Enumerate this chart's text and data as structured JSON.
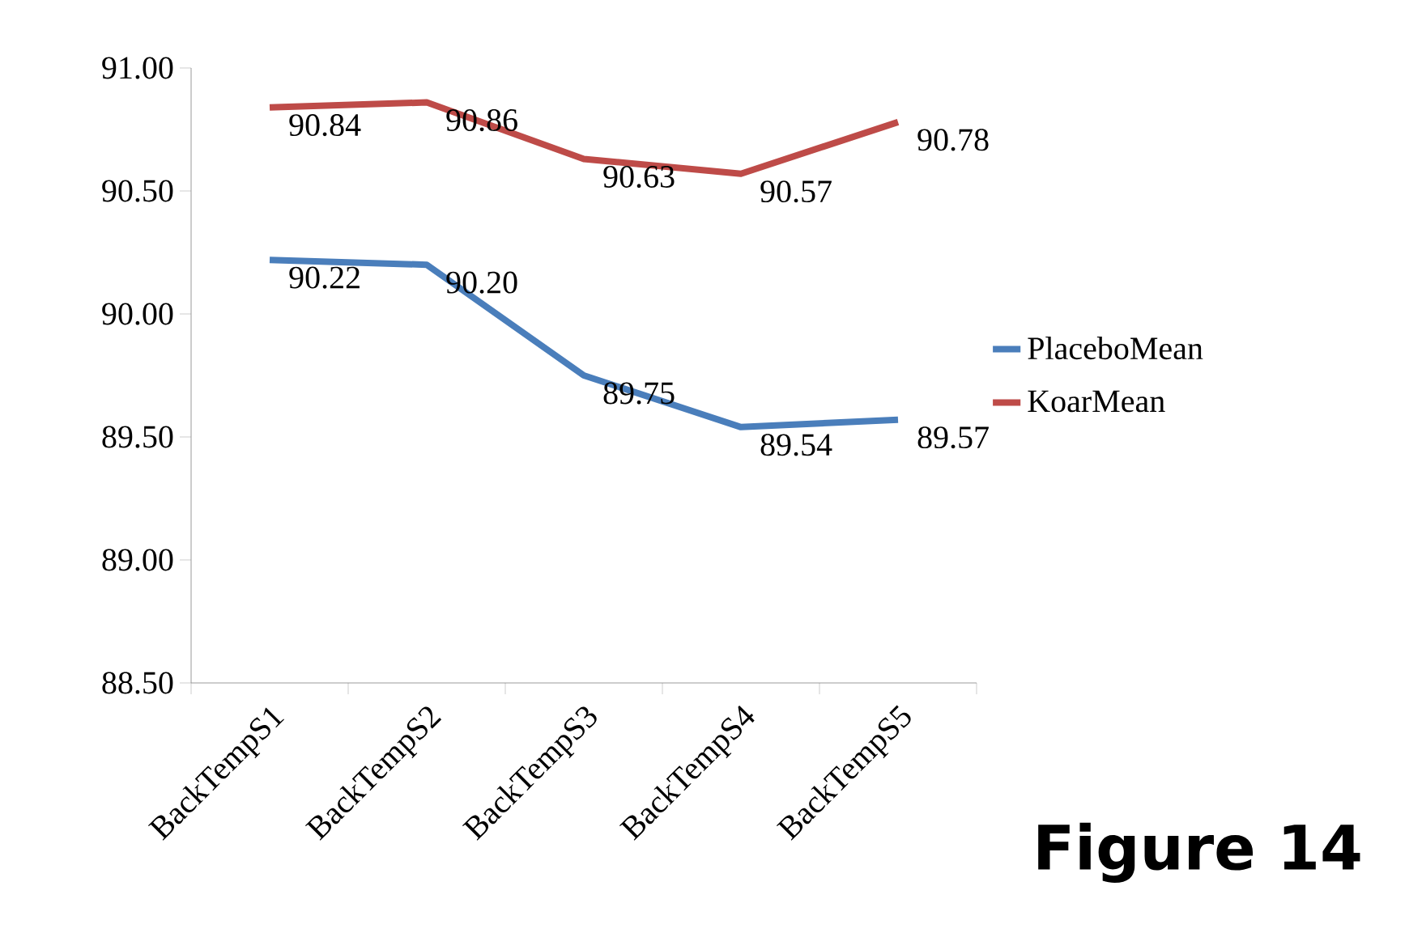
{
  "chart_data": {
    "type": "line",
    "categories": [
      "BackTempS1",
      "BackTempS2",
      "BackTempS3",
      "BackTempS4",
      "BackTempS5"
    ],
    "series": [
      {
        "name": "PlaceboMean",
        "color": "#4a7ebb",
        "values": [
          90.22,
          90.2,
          89.75,
          89.54,
          89.57
        ],
        "value_labels": [
          "90.22",
          "90.20",
          "89.75",
          "89.54",
          "89.57"
        ]
      },
      {
        "name": "KoarMean",
        "color": "#be4b48",
        "values": [
          90.84,
          90.86,
          90.63,
          90.57,
          90.78
        ],
        "value_labels": [
          "90.84",
          "90.86",
          "90.63",
          "90.57",
          "90.78"
        ]
      }
    ],
    "ylim": [
      88.5,
      91.0
    ],
    "yticks": [
      {
        "value": 88.5,
        "label": "88.50"
      },
      {
        "value": 89.0,
        "label": "89.00"
      },
      {
        "value": 89.5,
        "label": "89.50"
      },
      {
        "value": 90.0,
        "label": "90.00"
      },
      {
        "value": 90.5,
        "label": "90.50"
      },
      {
        "value": 91.0,
        "label": "91.00"
      }
    ],
    "legend": "right",
    "annotations": [
      "Figure 14"
    ]
  }
}
